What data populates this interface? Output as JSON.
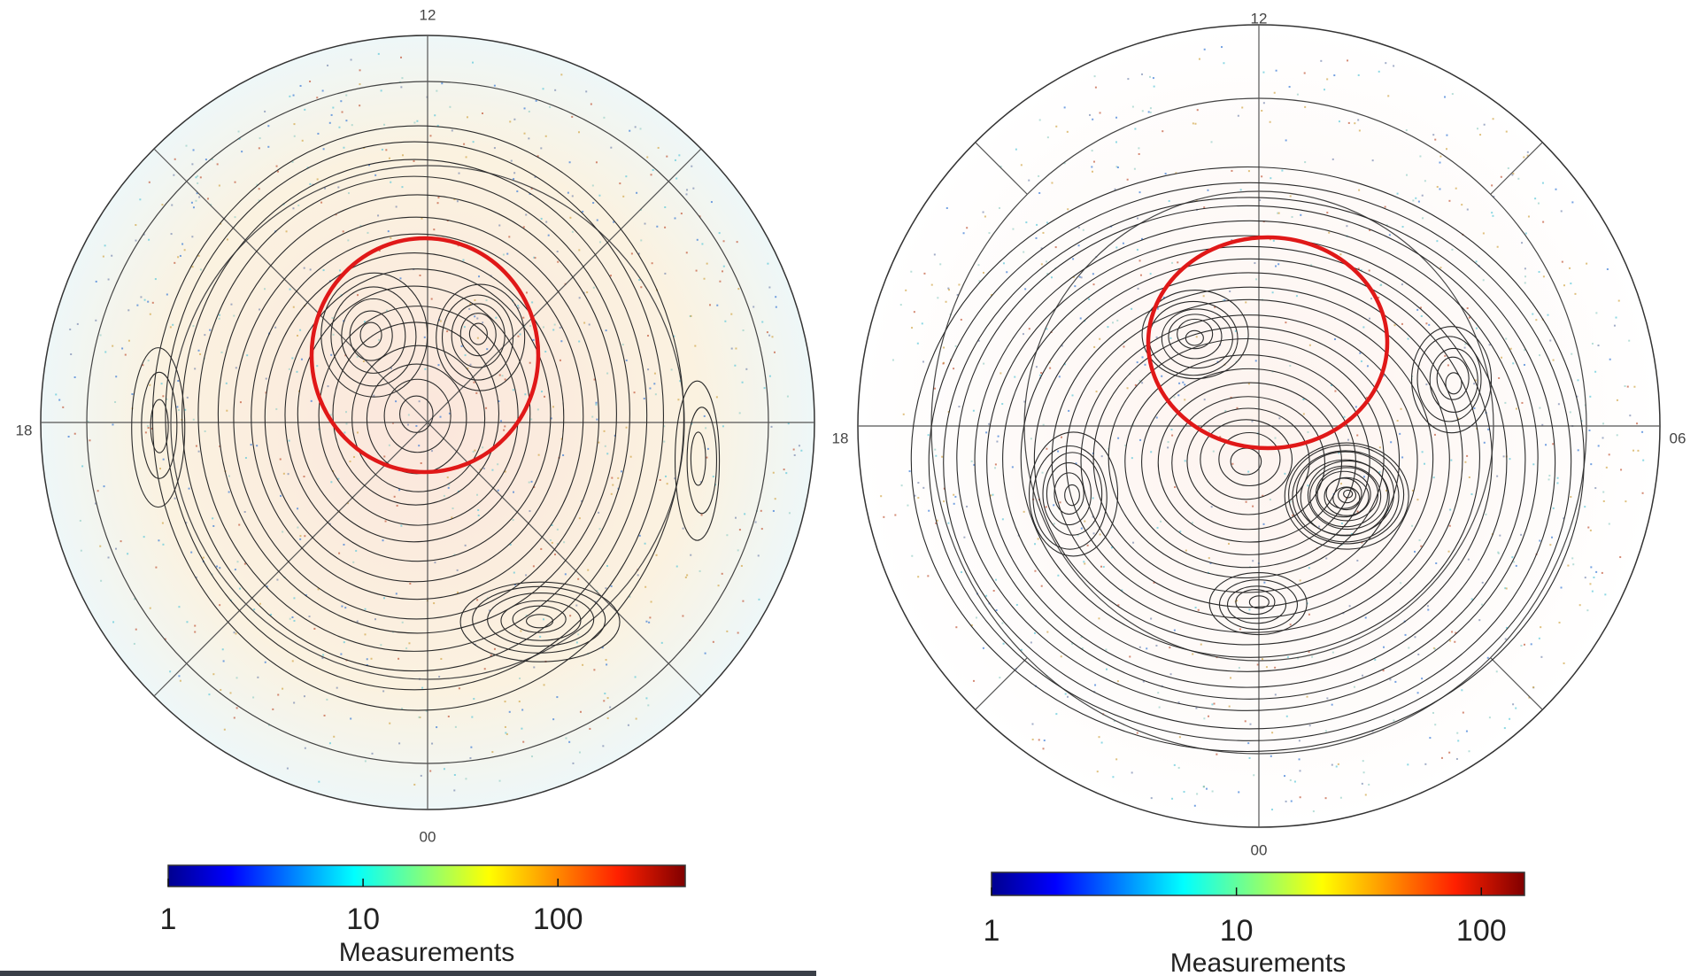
{
  "chart_data": [
    {
      "type": "polar-colorbar",
      "hour_labels": [
        "12",
        "18",
        "00"
      ],
      "xlabel": "Measurements",
      "xlim": [
        1,
        450
      ],
      "xticks": [
        1,
        10,
        100
      ],
      "log_x": true,
      "colormap": "jet",
      "highlight_color": "#e01818"
    },
    {
      "type": "polar-colorbar",
      "hour_labels": [
        "12",
        "18",
        "06",
        "00"
      ],
      "xlabel": "Measurements",
      "xlim": [
        1,
        150
      ],
      "xticks": [
        1,
        10,
        100
      ],
      "log_x": true,
      "colormap": "jet",
      "highlight_color": "#e01818"
    }
  ]
}
